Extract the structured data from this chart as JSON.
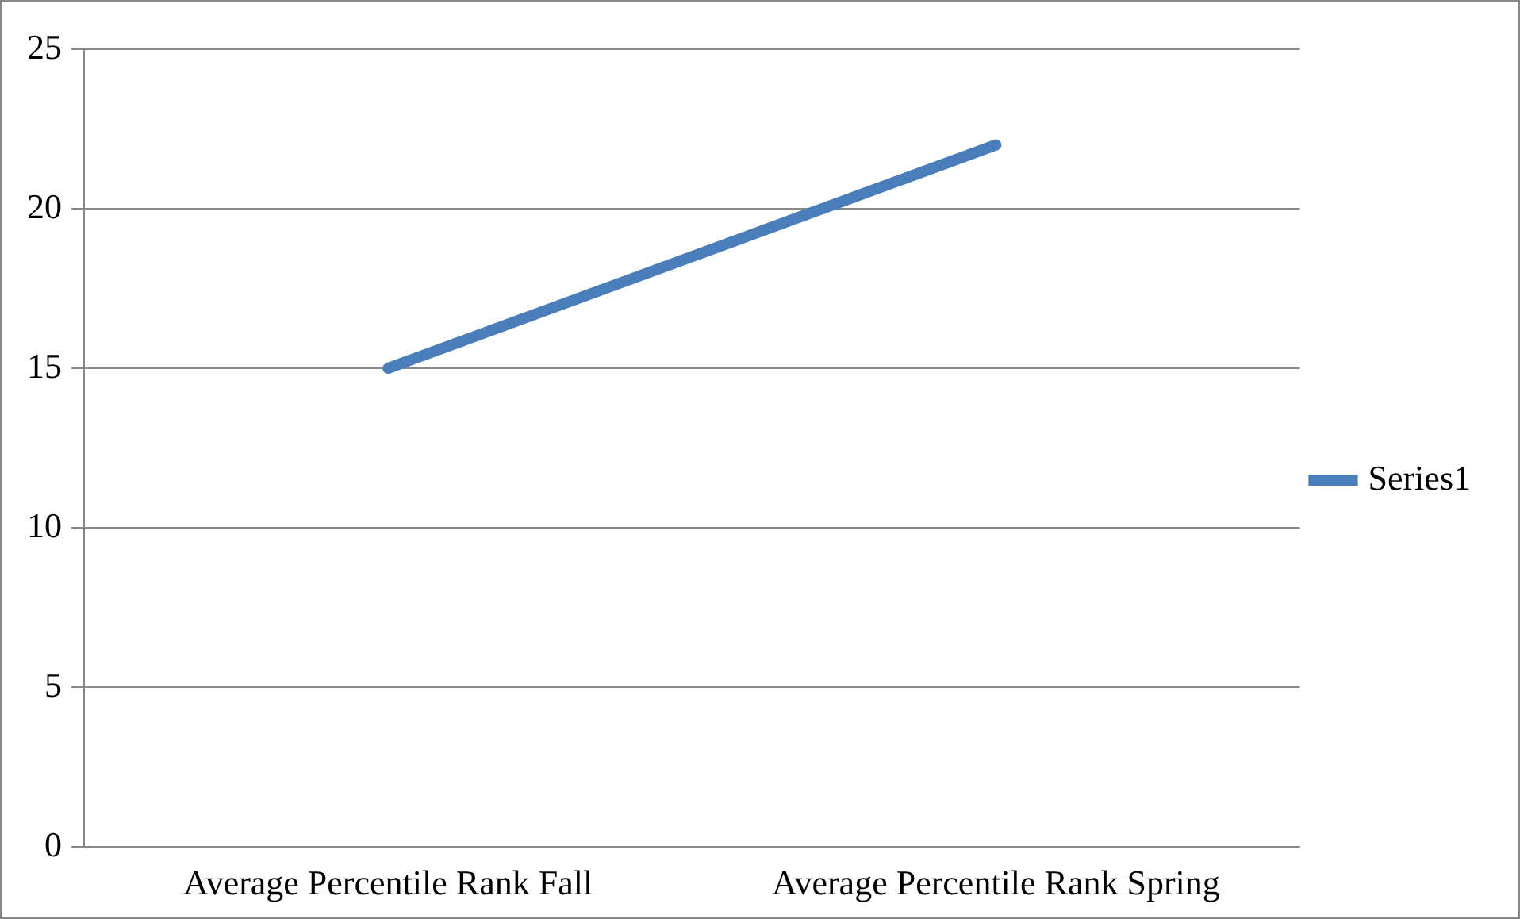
{
  "chart_data": {
    "type": "line",
    "categories": [
      "Average Percentile Rank Fall",
      "Average Percentile Rank Spring"
    ],
    "series": [
      {
        "name": "Series1",
        "color": "#4a7ebb",
        "values": [
          15,
          22
        ]
      }
    ],
    "ylim": [
      0,
      25
    ],
    "yticks": [
      0,
      5,
      10,
      15,
      20,
      25
    ],
    "grid": "y",
    "legend": "right",
    "marker": "none",
    "line_style": "solid"
  }
}
